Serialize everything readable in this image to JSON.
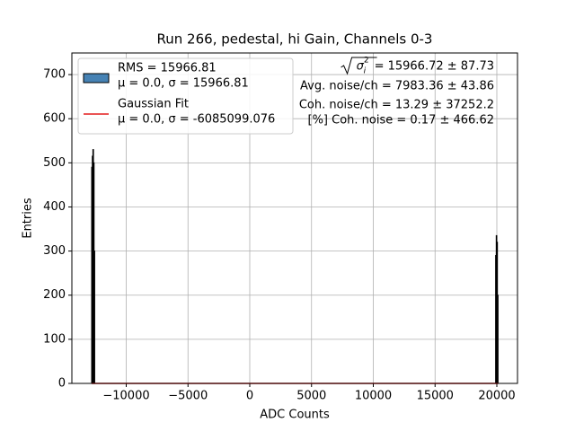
{
  "chart_data": {
    "type": "histogram",
    "title": "Run 266, pedestal, hi Gain, Channels 0-3",
    "xlabel": "ADC Counts",
    "ylabel": "Entries",
    "bins": [
      -12800,
      -12750,
      -12700,
      -12650,
      -12600,
      -12550,
      19900,
      19950,
      20000,
      20050,
      20100
    ],
    "series": [
      {
        "name": "RMS = 15966.81",
        "name_line2": "μ = 0.0, σ = 15966.81",
        "color": "#4682b4",
        "edgecolor": "#000000",
        "values": [
          490,
          515,
          530,
          500,
          300,
          0,
          290,
          335,
          320,
          200
        ]
      },
      {
        "name": "Gaussian Fit",
        "name_line2": "μ = 0.0, σ = -6085099.076",
        "color": "#e41a1c",
        "type": "line",
        "x": [
          -12800,
          20100
        ],
        "values": [
          0,
          0
        ]
      }
    ],
    "annotations": [
      {
        "symbol": "σ",
        "sub": "i",
        "sup": "2",
        "text": "= 15966.72 ± 87.73"
      },
      {
        "text": "Avg. noise/ch = 7983.36 ± 43.86"
      },
      {
        "text": "Coh. noise/ch = 13.29 ± 37252.2"
      },
      {
        "text": "[%] Coh. noise = 0.17 ± 466.62"
      }
    ],
    "xlim": [
      -14400,
      21673
    ],
    "ylim": [
      0,
      749
    ],
    "xticks": [
      {
        "value": -10000,
        "label": "−10000"
      },
      {
        "value": -5000,
        "label": "−5000"
      },
      0,
      5000,
      10000,
      15000,
      20000
    ],
    "yticks": [
      0,
      100,
      200,
      300,
      400,
      500,
      600,
      700
    ],
    "grid": true,
    "legend": "upper left"
  }
}
